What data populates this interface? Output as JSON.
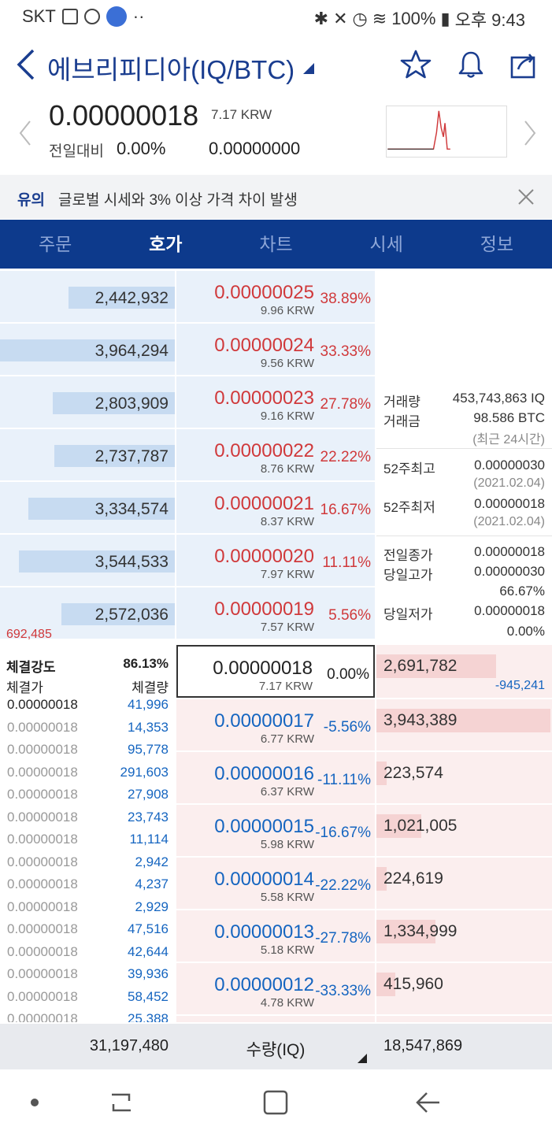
{
  "status_bar": {
    "carrier": "SKT",
    "battery": "100%",
    "time": "오후 9:43"
  },
  "header": {
    "title": "에브리피디아(IQ/BTC)",
    "icons": [
      "back-arrow-icon",
      "star-icon",
      "bell-icon",
      "share-icon"
    ]
  },
  "summary": {
    "price": "0.00000018",
    "price_krw": "7.17 KRW",
    "change_label": "전일대비",
    "change_pct": "0.00%",
    "change_abs": "0.00000000"
  },
  "notice": {
    "tag": "유의",
    "text": "글로벌 시세와 3% 이상 가격 차이 발생"
  },
  "tabs": [
    {
      "label": "주문",
      "active": false
    },
    {
      "label": "호가",
      "active": true
    },
    {
      "label": "차트",
      "active": false
    },
    {
      "label": "시세",
      "active": false
    },
    {
      "label": "정보",
      "active": false
    }
  ],
  "asks": [
    {
      "volume": "2,442,932",
      "bar": 0.61,
      "price": "0.00000025",
      "krw": "9.96 KRW",
      "pct": "38.89%"
    },
    {
      "volume": "3,964,294",
      "bar": 1.0,
      "price": "0.00000024",
      "krw": "9.56 KRW",
      "pct": "33.33%"
    },
    {
      "volume": "2,803,909",
      "bar": 0.7,
      "price": "0.00000023",
      "krw": "9.16 KRW",
      "pct": "27.78%"
    },
    {
      "volume": "2,737,787",
      "bar": 0.69,
      "price": "0.00000022",
      "krw": "8.76 KRW",
      "pct": "22.22%"
    },
    {
      "volume": "3,334,574",
      "bar": 0.84,
      "price": "0.00000021",
      "krw": "8.37 KRW",
      "pct": "16.67%"
    },
    {
      "volume": "3,544,533",
      "bar": 0.89,
      "price": "0.00000020",
      "krw": "7.97 KRW",
      "pct": "11.11%"
    },
    {
      "volume": "2,572,036",
      "bar": 0.65,
      "price": "0.00000019",
      "krw": "7.57 KRW",
      "pct": "5.56%"
    }
  ],
  "ask_extra": "692,485",
  "current": {
    "price": "0.00000018",
    "krw": "7.17 KRW",
    "pct": "0.00%",
    "bid_volume": "2,691,782",
    "bid_extra": "-945,241",
    "bid_bar": 0.68
  },
  "bids": [
    {
      "price": "0.00000017",
      "krw": "6.77 KRW",
      "pct": "-5.56%",
      "volume": "3,943,389",
      "bar": 1.0
    },
    {
      "price": "0.00000016",
      "krw": "6.37 KRW",
      "pct": "-11.11%",
      "volume": "223,574",
      "bar": 0.06
    },
    {
      "price": "0.00000015",
      "krw": "5.98 KRW",
      "pct": "-16.67%",
      "volume": "1,021,005",
      "bar": 0.26
    },
    {
      "price": "0.00000014",
      "krw": "5.58 KRW",
      "pct": "-22.22%",
      "volume": "224,619",
      "bar": 0.06
    },
    {
      "price": "0.00000013",
      "krw": "5.18 KRW",
      "pct": "-27.78%",
      "volume": "1,334,999",
      "bar": 0.34
    },
    {
      "price": "0.00000012",
      "krw": "4.78 KRW",
      "pct": "-33.33%",
      "volume": "415,960",
      "bar": 0.11
    }
  ],
  "info": {
    "volume_label": "거래량",
    "volume_value": "453,743,863 IQ",
    "amount_label": "거래금",
    "amount_value": "98.586 BTC",
    "period_note": "(최근 24시간)",
    "high52_label": "52주최고",
    "high52_value": "0.00000030",
    "high52_date": "(2021.02.04)",
    "low52_label": "52주최저",
    "low52_value": "0.00000018",
    "low52_date": "(2021.02.04)",
    "prev_close_label": "전일종가",
    "prev_close_value": "0.00000018",
    "day_high_label": "당일고가",
    "day_high_value": "0.00000030",
    "day_high_pct": "66.67%",
    "day_low_label": "당일저가",
    "day_low_value": "0.00000018",
    "day_low_pct": "0.00%"
  },
  "trades": {
    "strength_label": "체결강도",
    "strength_value": "86.13%",
    "price_header": "체결가",
    "qty_header": "체결량",
    "rows": [
      {
        "price": "0.00000018",
        "qty": "41,996"
      },
      {
        "price": "0.00000018",
        "qty": "14,353"
      },
      {
        "price": "0.00000018",
        "qty": "95,778"
      },
      {
        "price": "0.00000018",
        "qty": "291,603"
      },
      {
        "price": "0.00000018",
        "qty": "27,908"
      },
      {
        "price": "0.00000018",
        "qty": "23,743"
      },
      {
        "price": "0.00000018",
        "qty": "11,114"
      },
      {
        "price": "0.00000018",
        "qty": "2,942"
      },
      {
        "price": "0.00000018",
        "qty": "4,237"
      },
      {
        "price": "0.00000018",
        "qty": "2,929"
      },
      {
        "price": "0.00000018",
        "qty": "47,516"
      },
      {
        "price": "0.00000018",
        "qty": "42,644"
      },
      {
        "price": "0.00000018",
        "qty": "39,936"
      },
      {
        "price": "0.00000018",
        "qty": "58,452"
      },
      {
        "price": "0.00000018",
        "qty": "25,388"
      }
    ]
  },
  "footer": {
    "ask_total": "31,197,480",
    "unit_label": "수량(IQ)",
    "bid_total": "18,547,869"
  },
  "colors": {
    "brand": "#0d3a8c",
    "up": "#d0393b",
    "down": "#1565c0"
  }
}
